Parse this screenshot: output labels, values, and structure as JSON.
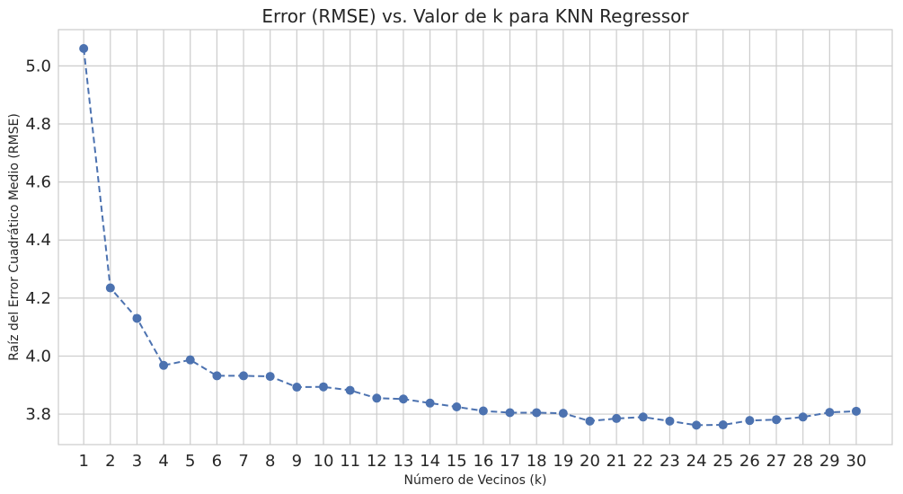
{
  "chart_data": {
    "type": "line",
    "title": "Error (RMSE) vs. Valor de k para KNN Regressor",
    "xlabel": "Número de Vecinos (k)",
    "ylabel": "Raíz del Error Cuadrático Medio (RMSE)",
    "x": [
      1,
      2,
      3,
      4,
      5,
      6,
      7,
      8,
      9,
      10,
      11,
      12,
      13,
      14,
      15,
      16,
      17,
      18,
      19,
      20,
      21,
      22,
      23,
      24,
      25,
      26,
      27,
      28,
      29,
      30
    ],
    "series": [
      {
        "values": [
          5.06,
          4.235,
          4.13,
          3.968,
          3.987,
          3.932,
          3.932,
          3.93,
          3.893,
          3.894,
          3.882,
          3.855,
          3.852,
          3.838,
          3.825,
          3.811,
          3.805,
          3.805,
          3.803,
          3.776,
          3.785,
          3.79,
          3.776,
          3.762,
          3.763,
          3.778,
          3.781,
          3.79,
          3.806,
          3.81
        ],
        "color": "#4c72b0",
        "line_style": "dashed",
        "marker": "circle"
      }
    ],
    "xlim": [
      0.05,
      31.35
    ],
    "ylim": [
      3.695,
      5.125
    ],
    "yticks": [
      "3.8",
      "4.0",
      "4.2",
      "4.4",
      "4.6",
      "4.8",
      "5.0"
    ],
    "grid": true,
    "legend": false
  }
}
